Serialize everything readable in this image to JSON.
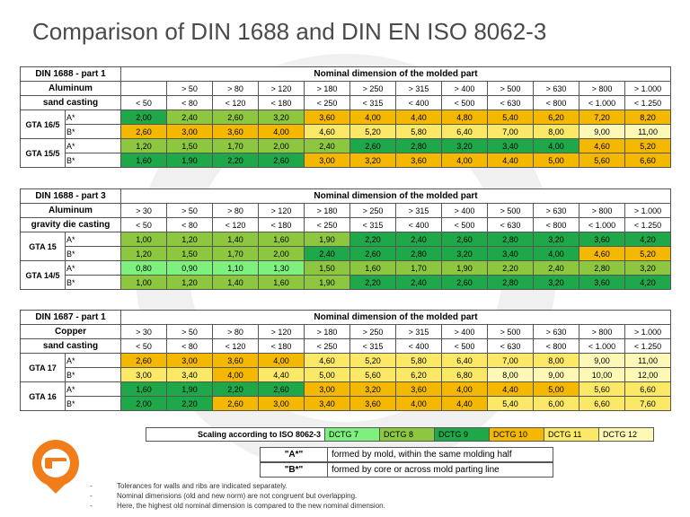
{
  "title": "Comparison of DIN 1688 and DIN EN ISO 8062-3",
  "colors": {
    "DCTG 7": "#7ef07e",
    "DCTG 8": "#8dc73f",
    "DCTG 9": "#1ea84a",
    "DCTG 10": "#f5b800",
    "DCTG 11": "#fbe866",
    "DCTG 12": "#fdf8b6"
  },
  "sections": [
    {
      "label1": "DIN 1688 - part 1",
      "label2": "Aluminum",
      "label3": "sand casting",
      "header": "Nominal dimension of the molded part",
      "from": [
        "",
        "> 50",
        "> 80",
        "> 120",
        "> 180",
        "> 250",
        "> 315",
        "> 400",
        "> 500",
        "> 630",
        "> 800",
        "> 1.000"
      ],
      "to": [
        "< 50",
        "< 80",
        "< 120",
        "< 180",
        "< 250",
        "< 315",
        "< 400",
        "< 500",
        "< 630",
        "< 800",
        "< 1.000",
        "< 1.250"
      ],
      "groups": [
        {
          "name": "GTA 16/5",
          "rows": [
            {
              "tag": "A*",
              "values": [
                "2,00",
                "2,40",
                "2,60",
                "3,20",
                "3,60",
                "4,00",
                "4,40",
                "4,80",
                "5,40",
                "6,20",
                "7,20",
                "8,20"
              ],
              "cls": [
                9,
                8,
                8,
                8,
                10,
                10,
                10,
                10,
                10,
                10,
                10,
                10
              ]
            },
            {
              "tag": "B*",
              "values": [
                "2,60",
                "3,00",
                "3,60",
                "4,00",
                "4,60",
                "5,20",
                "5,80",
                "6,40",
                "7,00",
                "8,00",
                "9,00",
                "11,00"
              ],
              "cls": [
                10,
                10,
                10,
                10,
                11,
                11,
                11,
                11,
                11,
                11,
                12,
                12
              ]
            }
          ]
        },
        {
          "name": "GTA 15/5",
          "rows": [
            {
              "tag": "A*",
              "values": [
                "1,20",
                "1,50",
                "1,70",
                "2,00",
                "2,40",
                "2,60",
                "2,80",
                "3,20",
                "3,40",
                "4,00",
                "4,60",
                "5,20"
              ],
              "cls": [
                8,
                8,
                8,
                8,
                8,
                9,
                9,
                9,
                9,
                9,
                10,
                10
              ]
            },
            {
              "tag": "B*",
              "values": [
                "1,60",
                "1,90",
                "2,20",
                "2,60",
                "3,00",
                "3,20",
                "3,60",
                "4,00",
                "4,40",
                "5,00",
                "5,60",
                "6,60"
              ],
              "cls": [
                9,
                9,
                9,
                9,
                10,
                10,
                10,
                10,
                10,
                10,
                10,
                10
              ]
            }
          ]
        }
      ]
    },
    {
      "label1": "DIN 1688 - part 3",
      "label2": "Aluminum",
      "label3": "gravity die casting",
      "header": "Nominal dimension of the molded part",
      "from": [
        "> 30",
        "> 50",
        "> 80",
        "> 120",
        "> 180",
        "> 250",
        "> 315",
        "> 400",
        "> 500",
        "> 630",
        "> 800",
        "> 1.000"
      ],
      "to": [
        "< 50",
        "< 80",
        "< 120",
        "< 180",
        "< 250",
        "< 315",
        "< 400",
        "< 500",
        "< 630",
        "< 800",
        "< 1.000",
        "< 1.250"
      ],
      "groups": [
        {
          "name": "GTA 15",
          "rows": [
            {
              "tag": "A*",
              "values": [
                "1,00",
                "1,20",
                "1,40",
                "1,60",
                "1,90",
                "2,20",
                "2,40",
                "2,60",
                "2,80",
                "3,20",
                "3,60",
                "4,20"
              ],
              "cls": [
                8,
                8,
                8,
                8,
                8,
                9,
                9,
                9,
                9,
                9,
                9,
                9
              ]
            },
            {
              "tag": "B*",
              "values": [
                "1,20",
                "1,50",
                "1,70",
                "2,00",
                "2,40",
                "2,60",
                "2,80",
                "3,20",
                "3,40",
                "4,00",
                "4,60",
                "5,20"
              ],
              "cls": [
                8,
                8,
                8,
                8,
                9,
                9,
                9,
                9,
                9,
                9,
                10,
                10
              ]
            }
          ]
        },
        {
          "name": "GTA 14/5",
          "rows": [
            {
              "tag": "A*",
              "values": [
                "0,80",
                "0,90",
                "1,10",
                "1,30",
                "1,50",
                "1,60",
                "1,70",
                "1,90",
                "2,20",
                "2,40",
                "2,80",
                "3,20"
              ],
              "cls": [
                7,
                7,
                7,
                7,
                8,
                8,
                8,
                8,
                8,
                8,
                8,
                8
              ]
            },
            {
              "tag": "B*",
              "values": [
                "1,00",
                "1,20",
                "1,40",
                "1,60",
                "1,90",
                "2,20",
                "2,40",
                "2,60",
                "2,80",
                "3,20",
                "3,60",
                "4,20"
              ],
              "cls": [
                8,
                8,
                8,
                8,
                8,
                9,
                9,
                9,
                9,
                9,
                9,
                9
              ]
            }
          ]
        }
      ]
    },
    {
      "label1": "DIN 1687 - part 1",
      "label2": "Copper",
      "label3": "sand casting",
      "header": "Nominal dimension of the molded part",
      "from": [
        "> 30",
        "> 50",
        "> 80",
        "> 120",
        "> 180",
        "> 250",
        "> 315",
        "> 400",
        "> 500",
        "> 630",
        "> 800",
        "> 1.000"
      ],
      "to": [
        "< 50",
        "< 80",
        "< 120",
        "< 180",
        "< 250",
        "< 315",
        "< 400",
        "< 500",
        "< 630",
        "< 800",
        "< 1.000",
        "< 1.250"
      ],
      "groups": [
        {
          "name": "GTA 17",
          "rows": [
            {
              "tag": "A*",
              "values": [
                "2,60",
                "3,00",
                "3,60",
                "4,00",
                "4,60",
                "5,20",
                "5,80",
                "6,40",
                "7,00",
                "8,00",
                "9,00",
                "11,00"
              ],
              "cls": [
                10,
                10,
                10,
                10,
                11,
                11,
                11,
                11,
                11,
                11,
                12,
                12
              ]
            },
            {
              "tag": "B*",
              "values": [
                "3,00",
                "3,40",
                "4,00",
                "4,40",
                "5,00",
                "5,60",
                "6,20",
                "6,80",
                "8,00",
                "9,00",
                "10,00",
                "12,00"
              ],
              "cls": [
                11,
                11,
                10,
                11,
                11,
                11,
                11,
                11,
                12,
                12,
                12,
                12
              ]
            }
          ]
        },
        {
          "name": "GTA 16",
          "rows": [
            {
              "tag": "A*",
              "values": [
                "1,60",
                "1,90",
                "2,20",
                "2,60",
                "3,00",
                "3,20",
                "3,60",
                "4,00",
                "4,40",
                "5,00",
                "5,60",
                "6,60"
              ],
              "cls": [
                9,
                9,
                9,
                9,
                10,
                10,
                10,
                10,
                10,
                10,
                11,
                11
              ]
            },
            {
              "tag": "B*",
              "values": [
                "2,00",
                "2,20",
                "2,60",
                "3,00",
                "3,40",
                "3,60",
                "4,00",
                "4,40",
                "5,40",
                "6,00",
                "6,60",
                "7,60"
              ],
              "cls": [
                9,
                9,
                10,
                10,
                10,
                10,
                10,
                10,
                11,
                11,
                11,
                11
              ]
            }
          ]
        }
      ]
    }
  ],
  "legend": {
    "label": "Scaling according to ISO 8062-3",
    "items": [
      {
        "text": "DCTG 7",
        "cls": 7
      },
      {
        "text": "DCTG 8",
        "cls": 8
      },
      {
        "text": "DCTG 9",
        "cls": 9
      },
      {
        "text": "DCTG 10",
        "cls": 10
      },
      {
        "text": "DCTG 11",
        "cls": 11
      },
      {
        "text": "DCTG 12",
        "cls": 12
      }
    ]
  },
  "notes": [
    {
      "key": "\"A*\"",
      "text": "formed by mold, within the same molding half"
    },
    {
      "key": "\"B*\"",
      "text": "formed by core or across mold parting line"
    }
  ],
  "bullets": [
    "Tolerances for walls and ribs are indicated separately.",
    "Nominal dimensions (old and new norm) are not congruent but overlapping.",
    "Here, the highest old nominal dimension is compared to the new nominal dimension."
  ]
}
